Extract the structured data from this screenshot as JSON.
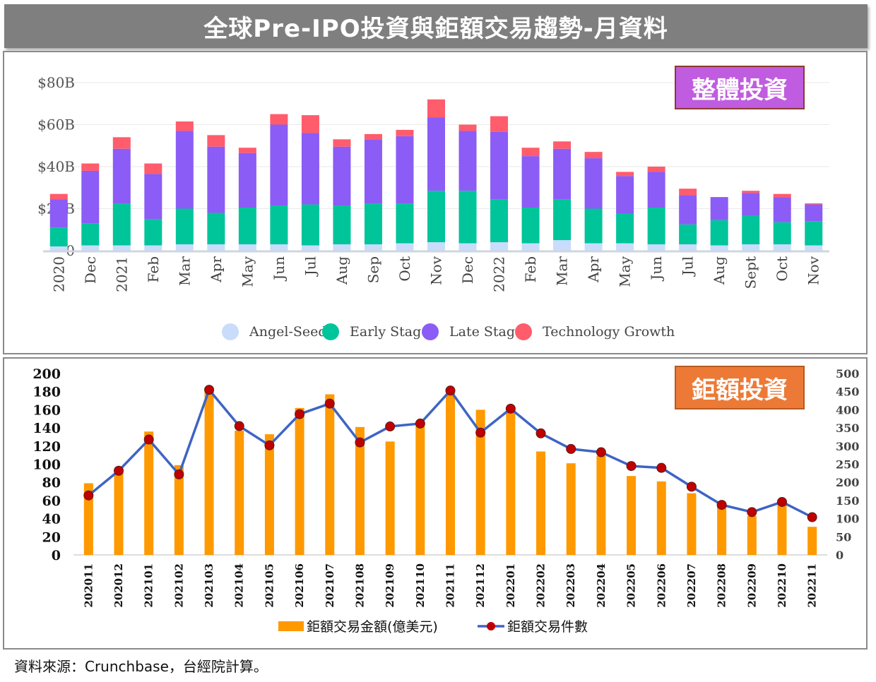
{
  "header": {
    "title": "全球Pre-IPO投資與鉅額交易趨勢-月資料"
  },
  "badges": {
    "top": "整體投資",
    "bottom": "鉅額投資"
  },
  "source": "資料來源：Crunchbase，台經院計算。",
  "colors": {
    "angel_seed": "#c9dcfb",
    "early_stage": "#00c49a",
    "late_stage": "#8b5cf6",
    "tech_growth": "#ff5c6c",
    "mega_amount": "#ff9900",
    "mega_count": "#3e64c4",
    "mega_count_marker": "#c00000"
  },
  "chart_data": [
    {
      "type": "bar",
      "stacked": true,
      "categories": [
        "2020",
        "Dec",
        "2021",
        "Feb",
        "Mar",
        "Apr",
        "May",
        "Jun",
        "Jul",
        "Aug",
        "Sep",
        "Oct",
        "Nov",
        "Dec",
        "2022",
        "Feb",
        "Mar",
        "Apr",
        "May",
        "Jun",
        "Jul",
        "Aug",
        "Sept",
        "Oct",
        "Nov"
      ],
      "series": [
        {
          "name": "Angel-Seed",
          "values": [
            2,
            2.5,
            2.5,
            2.5,
            3,
            3,
            3,
            3,
            2.5,
            3,
            3,
            3.5,
            4,
            3.5,
            4,
            3.5,
            5,
            3.5,
            3.5,
            3,
            3,
            2.5,
            3,
            3,
            2.5
          ]
        },
        {
          "name": "Early Stage",
          "values": [
            9,
            10.5,
            20,
            12.5,
            17,
            15,
            17.5,
            18.5,
            19.5,
            18.5,
            19.5,
            19,
            24.5,
            25,
            20.5,
            17,
            19.5,
            16.5,
            14,
            17.5,
            9.5,
            12,
            13.5,
            10.5,
            11.5
          ]
        },
        {
          "name": "Late Stage",
          "values": [
            13.5,
            25,
            26,
            21.5,
            37,
            31.5,
            26,
            38.5,
            34,
            28,
            30.5,
            32,
            35,
            28.5,
            32,
            24.5,
            24,
            24,
            18,
            17,
            14,
            11,
            11,
            12,
            8
          ]
        },
        {
          "name": "Technology Growth",
          "values": [
            2.5,
            3.5,
            5.5,
            5,
            4.5,
            5.5,
            2.5,
            5,
            8.5,
            3.5,
            2.5,
            3,
            8.5,
            3,
            7.5,
            4,
            3.5,
            3,
            2,
            2.5,
            3,
            0,
            1,
            1.5,
            0.5
          ]
        }
      ],
      "yticks": [
        "$80B",
        "$60B",
        "$40B",
        "$20B",
        "0"
      ],
      "ylim": [
        0,
        80
      ],
      "grid": true,
      "legend_position": "bottom"
    },
    {
      "type": "bar+line",
      "categories": [
        "202011",
        "202012",
        "202101",
        "202102",
        "202103",
        "202104",
        "202105",
        "202106",
        "202107",
        "202108",
        "202109",
        "202110",
        "202111",
        "202112",
        "202201",
        "202202",
        "202203",
        "202204",
        "202205",
        "202206",
        "202207",
        "202208",
        "202209",
        "202210",
        "202211"
      ],
      "series": [
        {
          "name": "鉅額交易金額(億美元)",
          "type": "bar",
          "axis": "left",
          "values": [
            79,
            93,
            136,
            99,
            180,
            137,
            133,
            162,
            177,
            141,
            125,
            146,
            181,
            160,
            159,
            114,
            101,
            109,
            87,
            81,
            68,
            57,
            43,
            59,
            31
          ]
        },
        {
          "name": "鉅額交易件數",
          "type": "line",
          "axis": "right",
          "values": [
            164,
            232,
            318,
            222,
            455,
            355,
            302,
            388,
            417,
            310,
            354,
            362,
            453,
            337,
            403,
            335,
            292,
            283,
            245,
            240,
            188,
            138,
            118,
            146,
            104
          ]
        }
      ],
      "left_ticks": [
        "200",
        "180",
        "160",
        "140",
        "120",
        "100",
        "80",
        "60",
        "40",
        "20",
        "0"
      ],
      "right_ticks": [
        "500",
        "450",
        "400",
        "350",
        "300",
        "250",
        "200",
        "150",
        "100",
        "50",
        "0"
      ],
      "left_ylim": [
        0,
        200
      ],
      "right_ylim": [
        0,
        500
      ],
      "grid": false,
      "legend_position": "bottom"
    }
  ]
}
